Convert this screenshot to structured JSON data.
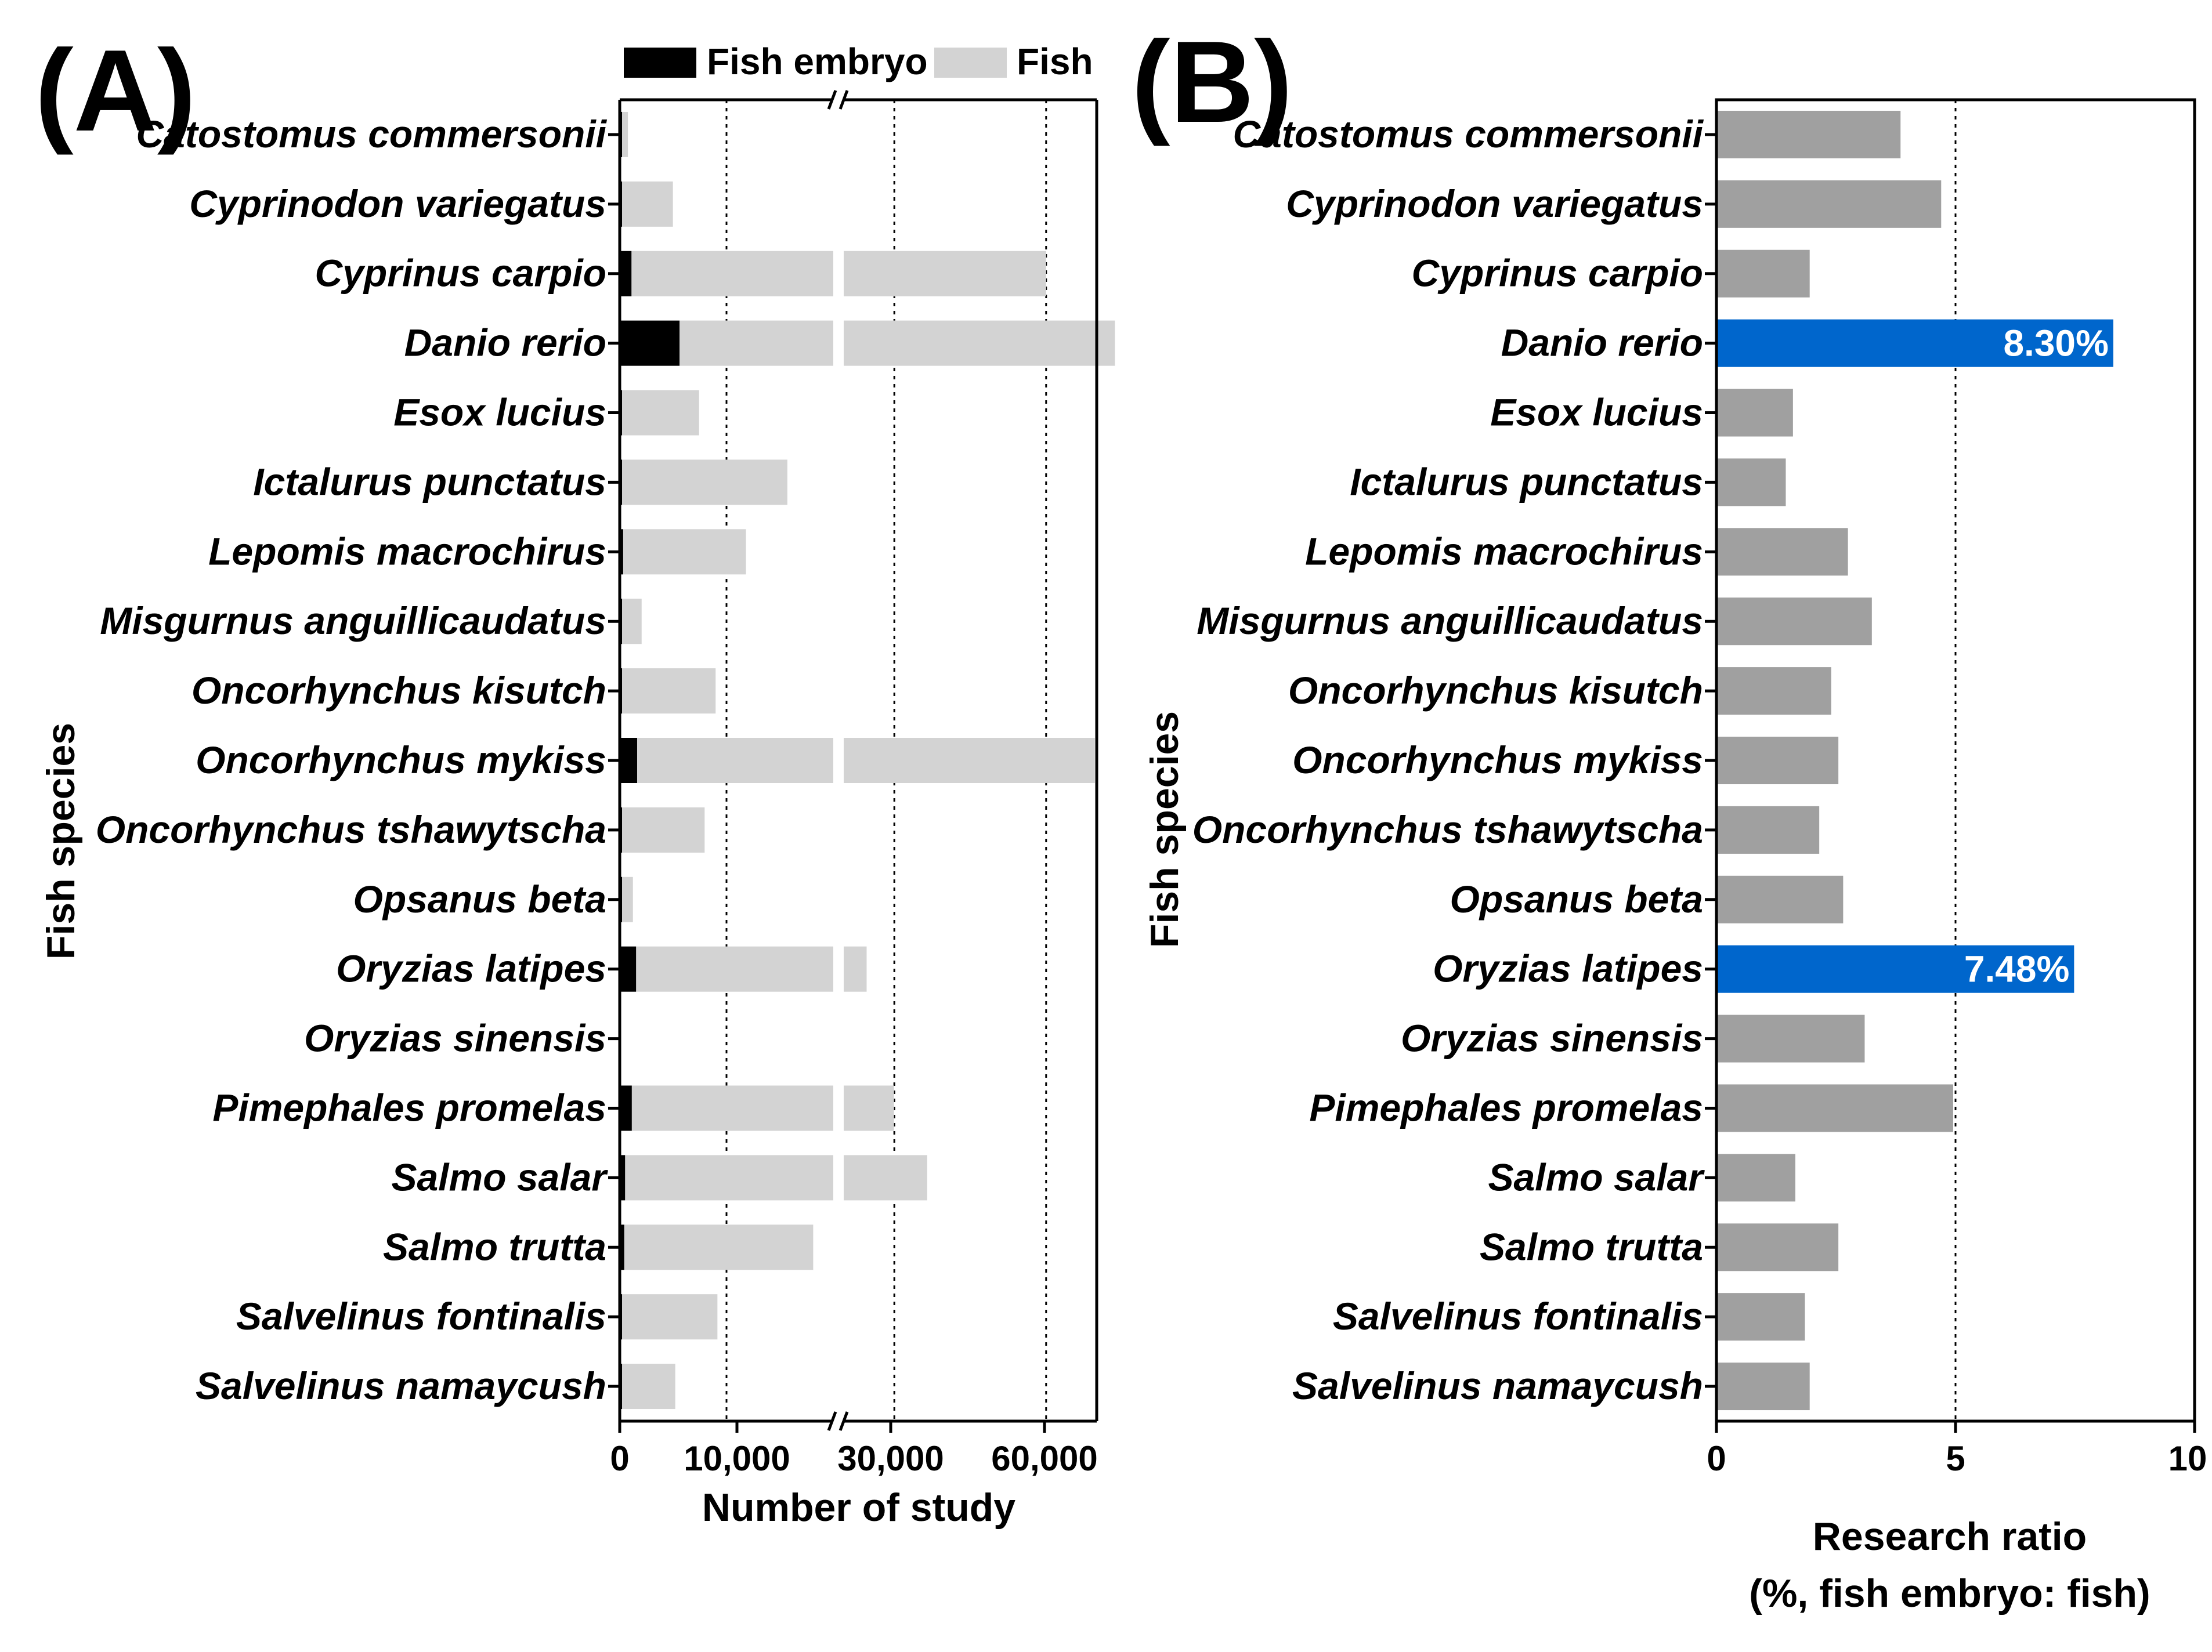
{
  "chart_data": [
    {
      "panel": "(A)",
      "type": "bar",
      "orientation": "horizontal",
      "stacked": true,
      "ylabel": "Fish species",
      "xlabel": "Number of study",
      "x_ticks": [
        "0",
        "10,000",
        "30,000",
        "60,000"
      ],
      "axis_break": "between 10,000 and 30,000 (break marks on top and bottom axis)",
      "legend": [
        {
          "name": "Fish embryo",
          "color": "#000000"
        },
        {
          "name": "Fish",
          "color": "#d3d3d3"
        }
      ],
      "categories": [
        "Catostomus commersonii",
        "Cyprinodon variegatus",
        "Cyprinus carpio",
        "Danio rerio",
        "Esox lucius",
        "Ictalurus punctatus",
        "Lepomis macrochirus",
        "Misgurnus anguillicaudatus",
        "Oncorhynchus kisutch",
        "Oncorhynchus mykiss",
        "Oncorhynchus tshawytscha",
        "Opsanus beta",
        "Oryzias latipes",
        "Oryzias sinensis",
        "Pimephales promelas",
        "Salmo salar",
        "Salmo trutta",
        "Salvelinus fontinalis",
        "Salvelinus namaycush"
      ],
      "series": [
        {
          "name": "Fish embryo",
          "values": [
            18,
            80,
            1100,
            5600,
            130,
            200,
            320,
            50,
            180,
            1630,
            150,
            35,
            1530,
            0,
            1130,
            500,
            420,
            150,
            100
          ]
        },
        {
          "name": "Fish",
          "values": [
            750,
            4900,
            58900,
            68000,
            7300,
            15500,
            11500,
            2000,
            8800,
            68000,
            7800,
            1200,
            23000,
            0,
            28800,
            36000,
            17700,
            9000,
            5100
          ]
        }
      ]
    },
    {
      "panel": "(B)",
      "type": "bar",
      "orientation": "horizontal",
      "ylabel": "Fish species",
      "xlabel": "Research ratio",
      "xlabel2": "(%, fish embryo: fish)",
      "xlim": [
        0,
        10
      ],
      "x_ticks": [
        "0",
        "5",
        "10"
      ],
      "gridline": 5,
      "bar_color": "#a0a0a0",
      "highlight_color": "#0066cc",
      "categories": [
        "Catostomus commersonii",
        "Cyprinodon variegatus",
        "Cyprinus carpio",
        "Danio rerio",
        "Esox lucius",
        "Ictalurus punctatus",
        "Lepomis macrochirus",
        "Misgurnus anguillicaudatus",
        "Oncorhynchus kisutch",
        "Oncorhynchus mykiss",
        "Oncorhynchus tshawytscha",
        "Opsanus beta",
        "Oryzias latipes",
        "Oryzias sinensis",
        "Pimephales promelas",
        "Salmo salar",
        "Salmo trutta",
        "Salvelinus fontinalis",
        "Salvelinus namaycush"
      ],
      "values": [
        3.85,
        4.7,
        1.95,
        8.3,
        1.6,
        1.45,
        2.75,
        3.25,
        2.4,
        2.55,
        2.15,
        2.65,
        7.48,
        3.1,
        4.95,
        1.65,
        2.55,
        1.85,
        1.95
      ],
      "highlighted": [
        "Danio rerio",
        "Oryzias latipes"
      ],
      "bar_labels": {
        "Danio rerio": "8.30%",
        "Oryzias latipes": "7.48%"
      }
    }
  ]
}
